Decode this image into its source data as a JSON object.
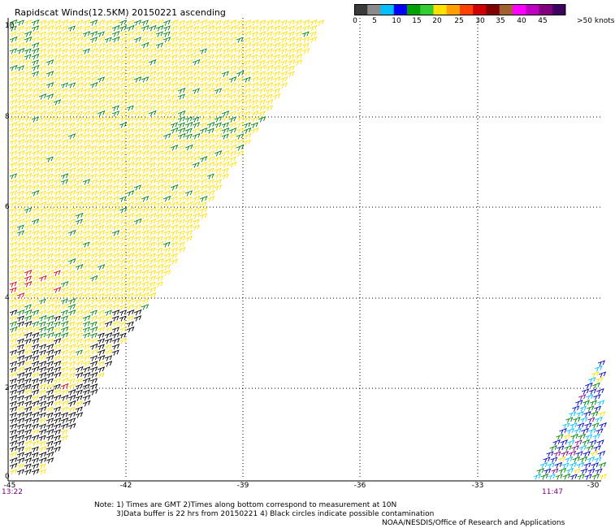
{
  "title": "Rapidscat Winds(12.5KM) 20150221 ascending",
  "colorbar": {
    "labels": [
      "0",
      "5",
      "10",
      "15",
      "20",
      "25",
      "30",
      "35",
      "40",
      "45",
      ">50 knots"
    ],
    "colors": [
      "#3a3a3a",
      "#8a8a8a",
      "#00bfff",
      "#0000ff",
      "#00a000",
      "#32cd32",
      "#ffe000",
      "#ffa000",
      "#ff4000",
      "#d00000",
      "#800000",
      "#a06030",
      "#ff00ff",
      "#c000c0",
      "#800080",
      "#400060"
    ]
  },
  "y_ticks": [
    "10",
    "8",
    "6",
    "4",
    "2",
    "0"
  ],
  "x_ticks": [
    "-45",
    "-42",
    "-39",
    "-36",
    "-33",
    "-30"
  ],
  "times": {
    "left": "13:22",
    "right": "11:47"
  },
  "notes": {
    "line1": "Note: 1) Times are GMT 2)Times along bottom correspond to measurement at 10N",
    "line2": "3)Data buffer is 22 hrs from 20150221 4) Black circles indicate possible contamination",
    "line3": "NOAA/NESDIS/Office of Research and Applications"
  },
  "wind_colors": {
    "yellow": "#ffe000",
    "green": "#008000",
    "black": "#000000",
    "red": "#d00000",
    "blue": "#0000c0",
    "cyan": "#00bfff",
    "purple": "#800080"
  }
}
